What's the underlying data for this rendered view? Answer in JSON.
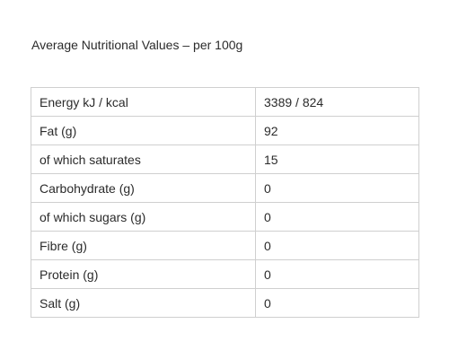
{
  "title": "Average Nutritional Values – per 100g",
  "rows": [
    {
      "label": "Energy kJ / kcal",
      "value": "3389 / 824"
    },
    {
      "label": "Fat (g)",
      "value": "92"
    },
    {
      "label": "of which saturates",
      "value": "15"
    },
    {
      "label": "Carbohydrate (g)",
      "value": "0"
    },
    {
      "label": "of which sugars (g)",
      "value": "0"
    },
    {
      "label": "Fibre (g)",
      "value": "0"
    },
    {
      "label": "Protein (g)",
      "value": "0"
    },
    {
      "label": "Salt (g)",
      "value": "0"
    }
  ]
}
